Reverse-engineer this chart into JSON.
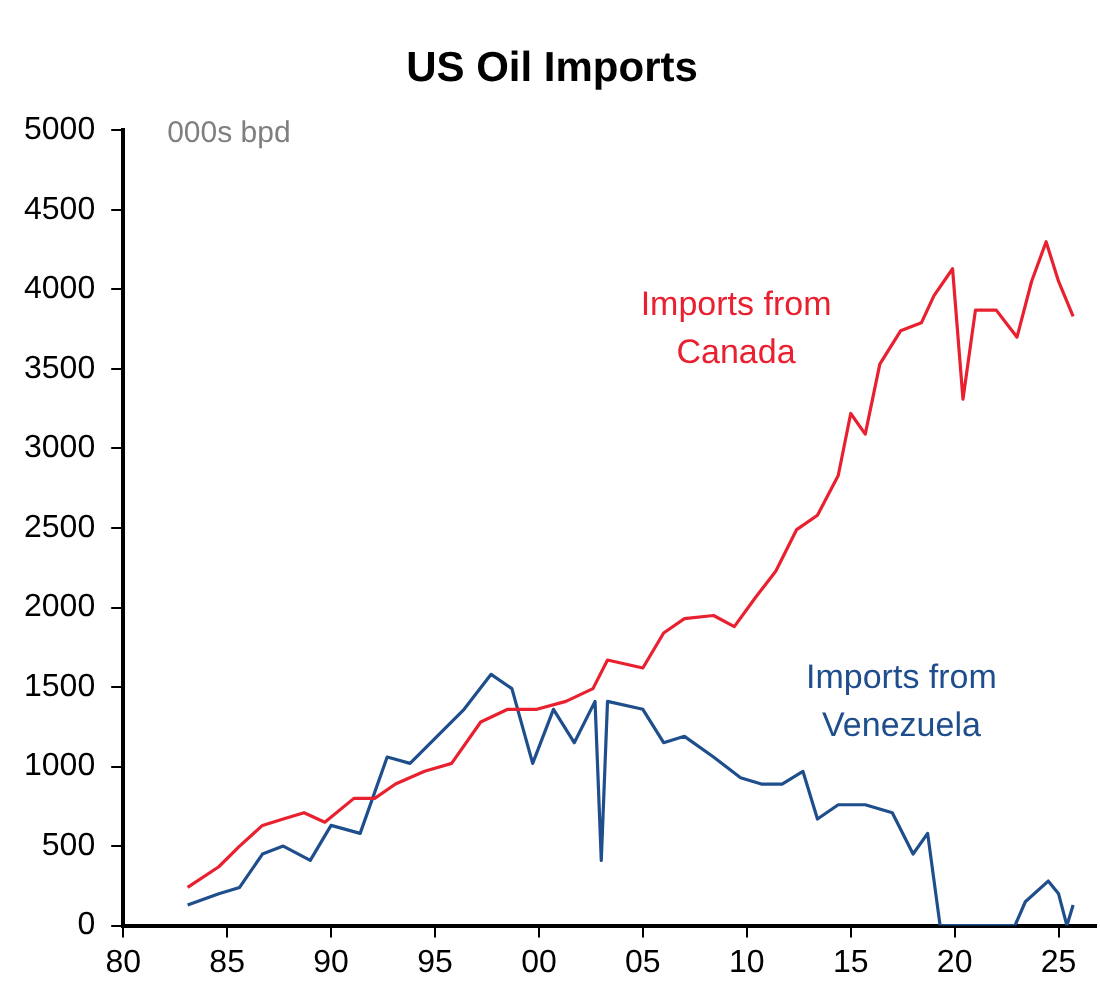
{
  "chart_data": {
    "type": "line",
    "title": "US Oil Imports",
    "ylabel": "000s bpd",
    "xlim": [
      1980,
      2026.8
    ],
    "xticks": [
      {
        "value": 1980,
        "label": "80"
      },
      {
        "value": 1985,
        "label": "85"
      },
      {
        "value": 1990,
        "label": "90"
      },
      {
        "value": 1995,
        "label": "95"
      },
      {
        "value": 2000,
        "label": "00"
      },
      {
        "value": 2005,
        "label": "05"
      },
      {
        "value": 2010,
        "label": "10"
      },
      {
        "value": 2015,
        "label": "15"
      },
      {
        "value": 2020,
        "label": "20"
      },
      {
        "value": 2025,
        "label": "25"
      }
    ],
    "ylim": [
      0,
      5000
    ],
    "yticks": [
      0,
      500,
      1000,
      1500,
      2000,
      2500,
      3000,
      3500,
      4000,
      4500,
      5000
    ],
    "grid": false,
    "legend": false,
    "marker": "none",
    "line_style": "solid",
    "series": [
      {
        "name": "Imports from Canada",
        "color": "#e8202f",
        "x": [
          1983.1,
          1984.6,
          1985.6,
          1986.7,
          1987.7,
          1988.7,
          1989.7,
          1991.1,
          1992.1,
          1993.1,
          1994.5,
          1995.8,
          1997.2,
          1998.5,
          1999.9,
          2001.3,
          2002.6,
          2003.3,
          2005,
          2006,
          2007,
          2008.4,
          2009.4,
          2010.4,
          2011.4,
          2012.4,
          2013.4,
          2014.4,
          2015,
          2015.7,
          2016.4,
          2017.4,
          2018.4,
          2019,
          2019.9,
          2020.4,
          2021,
          2022,
          2023,
          2023.7,
          2024.4,
          2025,
          2025.7
        ],
        "values": [
          240,
          370,
          500,
          630,
          670,
          710,
          650,
          800,
          800,
          890,
          970,
          1020,
          1280,
          1360,
          1360,
          1410,
          1490,
          1670,
          1620,
          1840,
          1930,
          1950,
          1880,
          2060,
          2230,
          2490,
          2580,
          2830,
          3220,
          3090,
          3530,
          3740,
          3790,
          3960,
          4130,
          3310,
          3870,
          3870,
          3700,
          4050,
          4300,
          4050,
          3830
        ]
      },
      {
        "name": "Imports from Venezuela",
        "color": "#1f4e8c",
        "x": [
          1983.1,
          1984.6,
          1985.6,
          1986.7,
          1987.7,
          1989,
          1990,
          1991.4,
          1992.7,
          1993.8,
          1995.1,
          1996.4,
          1997.7,
          1998.7,
          1999.7,
          2000.7,
          2001.7,
          2002.7,
          2003,
          2003.3,
          2005,
          2006,
          2007,
          2008.4,
          2009.7,
          2010.7,
          2011.7,
          2012.7,
          2013.4,
          2014.4,
          2015.7,
          2017,
          2018,
          2018.7,
          2019.3,
          2022.9,
          2023.4,
          2024.5,
          2025,
          2025.4,
          2025.7
        ],
        "values": [
          130,
          200,
          240,
          450,
          500,
          410,
          630,
          580,
          1060,
          1020,
          1190,
          1360,
          1580,
          1490,
          1020,
          1360,
          1150,
          1410,
          410,
          1410,
          1360,
          1150,
          1190,
          1060,
          930,
          890,
          890,
          970,
          670,
          760,
          760,
          710,
          450,
          580,
          0,
          0,
          150,
          280,
          200,
          0,
          130
        ]
      }
    ]
  }
}
